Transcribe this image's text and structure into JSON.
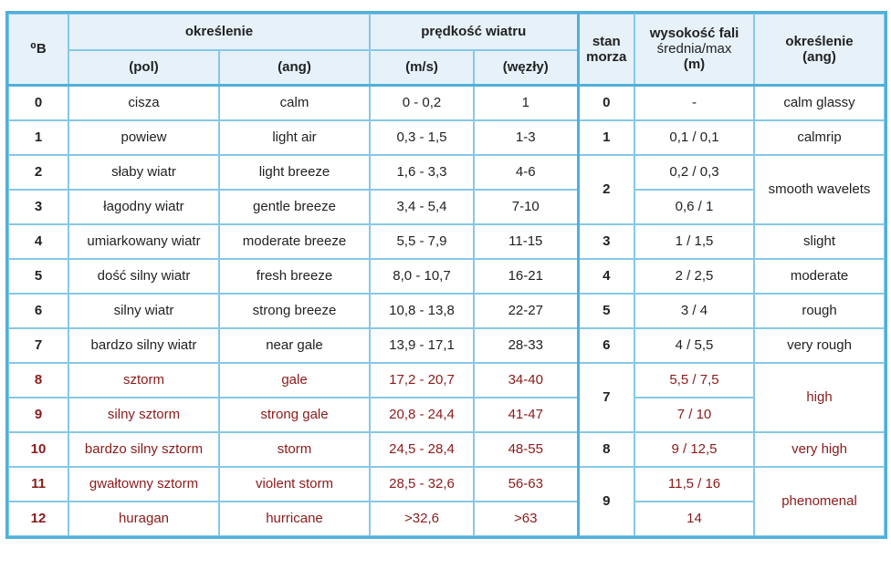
{
  "header": {
    "beaufort": "⁰B",
    "okreslenie": "określenie",
    "pol": "(pol)",
    "ang": "(ang)",
    "predkosc": "prędkość wiatru",
    "ms": "(m/s)",
    "wezly": "(węzły)",
    "stan": "stan",
    "morza": "morza",
    "wysokosc": "wysokość fali",
    "srednia": "średnia/max",
    "m": "(m)",
    "okreslenie_ang": "określenie",
    "ang2": "(ang)"
  },
  "rows": [
    {
      "b": "0",
      "pol": "cisza",
      "ang": "calm",
      "ms": "0 - 0,2",
      "kn": "1"
    },
    {
      "b": "1",
      "pol": "powiew",
      "ang": "light air",
      "ms": "0,3 - 1,5",
      "kn": "1-3"
    },
    {
      "b": "2",
      "pol": "słaby wiatr",
      "ang": "light breeze",
      "ms": "1,6 - 3,3",
      "kn": "4-6"
    },
    {
      "b": "3",
      "pol": "łagodny wiatr",
      "ang": "gentle breeze",
      "ms": "3,4 - 5,4",
      "kn": "7-10"
    },
    {
      "b": "4",
      "pol": "umiarkowany wiatr",
      "ang": "moderate breeze",
      "ms": "5,5 - 7,9",
      "kn": "11-15"
    },
    {
      "b": "5",
      "pol": "dość silny wiatr",
      "ang": "fresh breeze",
      "ms": "8,0 - 10,7",
      "kn": "16-21"
    },
    {
      "b": "6",
      "pol": "silny wiatr",
      "ang": "strong breeze",
      "ms": "10,8 - 13,8",
      "kn": "22-27"
    },
    {
      "b": "7",
      "pol": "bardzo silny wiatr",
      "ang": "near gale",
      "ms": "13,9 - 17,1",
      "kn": "28-33"
    },
    {
      "b": "8",
      "pol": "sztorm",
      "ang": "gale",
      "ms": "17,2 - 20,7",
      "kn": "34-40"
    },
    {
      "b": "9",
      "pol": "silny sztorm",
      "ang": "strong gale",
      "ms": "20,8 - 24,4",
      "kn": "41-47"
    },
    {
      "b": "10",
      "pol": "bardzo silny sztorm",
      "ang": "storm",
      "ms": "24,5 - 28,4",
      "kn": "48-55"
    },
    {
      "b": "11",
      "pol": "gwałtowny sztorm",
      "ang": "violent storm",
      "ms": "28,5 - 32,6",
      "kn": "56-63"
    },
    {
      "b": "12",
      "pol": "huragan",
      "ang": "hurricane",
      "ms": ">32,6",
      "kn": ">63"
    }
  ],
  "sea": {
    "s0": "0",
    "w0": "-",
    "d0": "calm glassy",
    "s1": "1",
    "w1": "0,1 / 0,1",
    "d1": "calmrip",
    "s2": "2",
    "w2a": "0,2 / 0,3",
    "w2b": "0,6 / 1",
    "d2": "smooth wavelets",
    "s3": "3",
    "w3": "1 / 1,5",
    "d3": "slight",
    "s4": "4",
    "w4": "2 / 2,5",
    "d4": "moderate",
    "s5": "5",
    "w5": "3 / 4",
    "d5": "rough",
    "s6": "6",
    "w6": "4 / 5,5",
    "d6": "very rough",
    "s7": "7",
    "w7a": "5,5 / 7,5",
    "w7b": "7 / 10",
    "d7": "high",
    "s8": "8",
    "w8": "9 / 12,5",
    "d8": "very high",
    "s9": "9",
    "w9a": "11,5 / 16",
    "w9b": "14",
    "d9": "phenomenal"
  },
  "colors": {
    "border": "#86c8e6",
    "header_bg": "#e6f1f9",
    "storm_text": "#8b1a1a"
  }
}
